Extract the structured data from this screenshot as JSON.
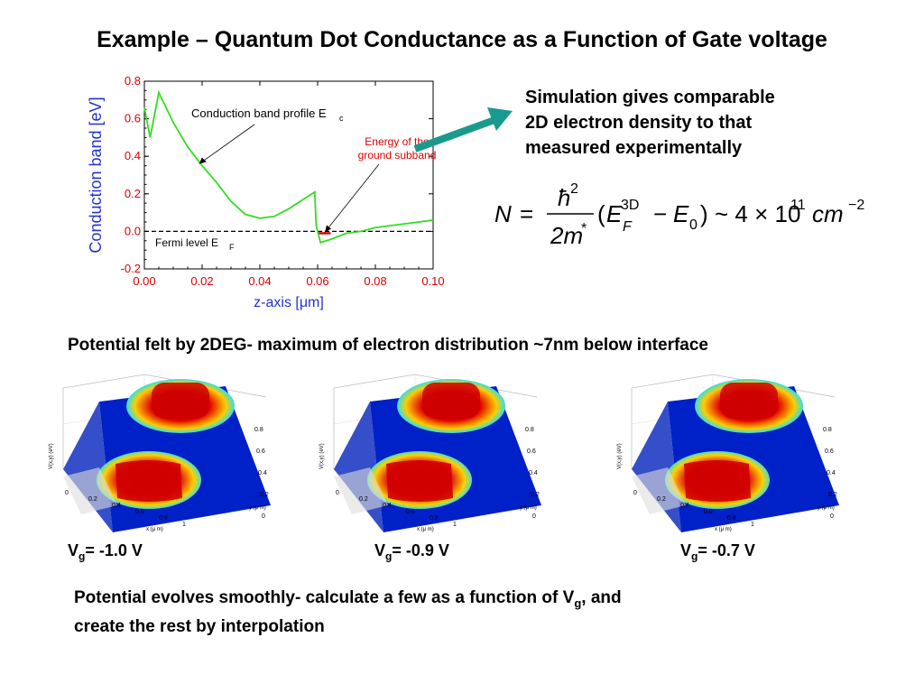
{
  "title": "Example – Quantum Dot Conductance as a Function of Gate voltage",
  "chart_data": {
    "type": "line",
    "xlabel": "z-axis  [μm]",
    "ylabel": "Conduction band  [eV]",
    "xlim": [
      0,
      0.1
    ],
    "ylim": [
      -0.2,
      0.8
    ],
    "xticks": [
      "0.00",
      "0.02",
      "0.04",
      "0.06",
      "0.08",
      "0.10"
    ],
    "yticks": [
      "-0.2",
      "0.0",
      "0.2",
      "0.4",
      "0.6",
      "0.8"
    ],
    "series": [
      {
        "x": [
          0.0,
          0.002,
          0.005,
          0.01,
          0.015,
          0.02,
          0.025,
          0.03,
          0.035,
          0.04,
          0.045,
          0.05,
          0.055,
          0.059,
          0.0595,
          0.061,
          0.065,
          0.07,
          0.075,
          0.08,
          0.085,
          0.09,
          0.095,
          0.1
        ],
        "y": [
          0.66,
          0.5,
          0.74,
          0.58,
          0.45,
          0.35,
          0.26,
          0.16,
          0.09,
          0.07,
          0.08,
          0.12,
          0.17,
          0.21,
          0.03,
          -0.06,
          -0.04,
          -0.01,
          0.0,
          0.02,
          0.03,
          0.04,
          0.05,
          0.06
        ],
        "color": "#33dd22"
      }
    ],
    "fermi_level": 0.0,
    "ground_subband": {
      "x": [
        0.06,
        0.0645
      ],
      "y": -0.01,
      "color": "#dd0000"
    },
    "annotations": {
      "conduction_profile": "Conduction band profile E",
      "conduction_profile_sub": "c",
      "ground_subband_line1": "Energy of the",
      "ground_subband_line2": "ground subband",
      "fermi": "Fermi level E",
      "fermi_sub": "F"
    },
    "grid": false
  },
  "callout_lines": [
    "Simulation gives comparable",
    "2D electron density to that",
    "measured  experimentally"
  ],
  "equation": {
    "lhs": "N",
    "eq": "=",
    "numerator": "ħ",
    "num_sup": "2",
    "denominator": "2m",
    "den_sup": "*",
    "paren_open": "(",
    "E": "E",
    "E_sup": "3D",
    "E_sub": "F",
    "minus": "−",
    "E0": "E",
    "E0_sub": "0",
    "paren_close": ")",
    "approx": "~ 4 × 10",
    "exp": "11",
    "unit": "cm",
    "unit_exp": "−2"
  },
  "mid_caption": "Potential felt by 2DEG- maximum of electron distribution ~7nm below interface",
  "surface_axes": {
    "zlabel": "V(x,y) (eV)",
    "xlabel": "x (μ m)",
    "ylabel": "y (μ m)",
    "x_ticks": [
      "0",
      "0.2",
      "0.4",
      "0.6",
      "0.8",
      "1"
    ],
    "y_ticks": [
      "0",
      "0.2",
      "0.4",
      "0.6",
      "0.8"
    ]
  },
  "gate_voltages": [
    {
      "prefix": "V",
      "sub": "g",
      "value": "= -1.0 V"
    },
    {
      "prefix": "V",
      "sub": "g",
      "value": "= -0.9 V"
    },
    {
      "prefix": "V",
      "sub": "g",
      "value": "= -0.7 V"
    }
  ],
  "bottom": {
    "line1_a": "Potential evolves smoothly-  calculate a few as a function of V",
    "line1_sub": "g",
    "line1_b": ", and",
    "line2": "create the rest by interpolation"
  },
  "colors": {
    "arrow": "#1a9a8c",
    "axis_tick_label": "#dd0000",
    "axis_label": "#2233cc"
  }
}
